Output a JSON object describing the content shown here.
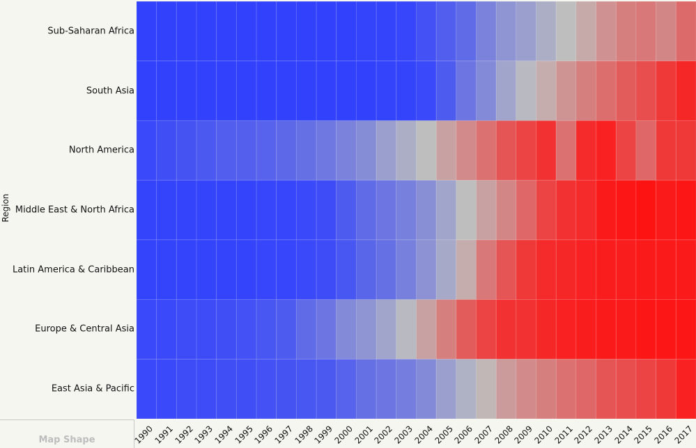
{
  "chart_data": {
    "type": "heatmap",
    "title": "",
    "xlabel": "",
    "ylabel": "Region",
    "color_scale": {
      "low": "#2b3cff",
      "mid": "#bebebe",
      "high": "#ff0f0f",
      "domain": [
        0,
        1
      ]
    },
    "x": [
      "1990",
      "1991",
      "1992",
      "1993",
      "1994",
      "1995",
      "1996",
      "1997",
      "1998",
      "1999",
      "2000",
      "2001",
      "2002",
      "2003",
      "2004",
      "2005",
      "2006",
      "2007",
      "2008",
      "2009",
      "2010",
      "2011",
      "2012",
      "2013",
      "2014",
      "2015",
      "2016",
      "2017"
    ],
    "rows": [
      {
        "name": "Sub-Saharan Africa",
        "values": [
          0.02,
          0.02,
          0.02,
          0.02,
          0.02,
          0.02,
          0.02,
          0.02,
          0.02,
          0.02,
          0.02,
          0.03,
          0.03,
          0.04,
          0.08,
          0.13,
          0.18,
          0.27,
          0.34,
          0.38,
          0.44,
          0.5,
          0.56,
          0.63,
          0.68,
          0.7,
          0.66,
          0.74
        ]
      },
      {
        "name": "South Asia",
        "values": [
          0.02,
          0.02,
          0.02,
          0.02,
          0.02,
          0.02,
          0.02,
          0.02,
          0.02,
          0.02,
          0.02,
          0.02,
          0.03,
          0.03,
          0.05,
          0.12,
          0.22,
          0.3,
          0.4,
          0.48,
          0.55,
          0.62,
          0.68,
          0.73,
          0.78,
          0.82,
          0.88,
          0.93
        ]
      },
      {
        "name": "North America",
        "values": [
          0.05,
          0.07,
          0.09,
          0.11,
          0.13,
          0.14,
          0.15,
          0.17,
          0.2,
          0.23,
          0.27,
          0.31,
          0.38,
          0.44,
          0.5,
          0.58,
          0.65,
          0.72,
          0.8,
          0.85,
          0.9,
          0.72,
          0.92,
          0.95,
          0.85,
          0.75,
          0.88,
          0.88
        ]
      },
      {
        "name": "Middle East & North Africa",
        "values": [
          0.03,
          0.03,
          0.03,
          0.03,
          0.03,
          0.03,
          0.04,
          0.04,
          0.05,
          0.06,
          0.12,
          0.18,
          0.22,
          0.26,
          0.32,
          0.4,
          0.5,
          0.58,
          0.66,
          0.75,
          0.85,
          0.9,
          0.92,
          0.97,
          0.98,
          0.99,
          0.97,
          0.98
        ]
      },
      {
        "name": "Latin America & Caribbean",
        "values": [
          0.03,
          0.03,
          0.03,
          0.03,
          0.03,
          0.03,
          0.04,
          0.04,
          0.05,
          0.06,
          0.1,
          0.16,
          0.2,
          0.26,
          0.33,
          0.42,
          0.55,
          0.7,
          0.8,
          0.88,
          0.92,
          0.93,
          0.95,
          0.96,
          0.96,
          0.97,
          0.97,
          0.97
        ]
      },
      {
        "name": "Europe & Central Asia",
        "values": [
          0.05,
          0.05,
          0.06,
          0.06,
          0.07,
          0.08,
          0.1,
          0.12,
          0.18,
          0.22,
          0.3,
          0.34,
          0.4,
          0.48,
          0.58,
          0.68,
          0.78,
          0.85,
          0.9,
          0.9,
          0.93,
          0.95,
          0.96,
          0.97,
          0.97,
          0.98,
          0.98,
          0.98
        ]
      },
      {
        "name": "East Asia & Pacific",
        "values": [
          0.05,
          0.05,
          0.06,
          0.06,
          0.07,
          0.07,
          0.08,
          0.09,
          0.1,
          0.11,
          0.15,
          0.2,
          0.22,
          0.25,
          0.3,
          0.38,
          0.45,
          0.52,
          0.6,
          0.65,
          0.68,
          0.72,
          0.75,
          0.8,
          0.82,
          0.85,
          0.88,
          0.95
        ]
      }
    ],
    "legend": "none",
    "grid": false
  },
  "panel": {
    "map_shape_label": "Map Shape"
  }
}
